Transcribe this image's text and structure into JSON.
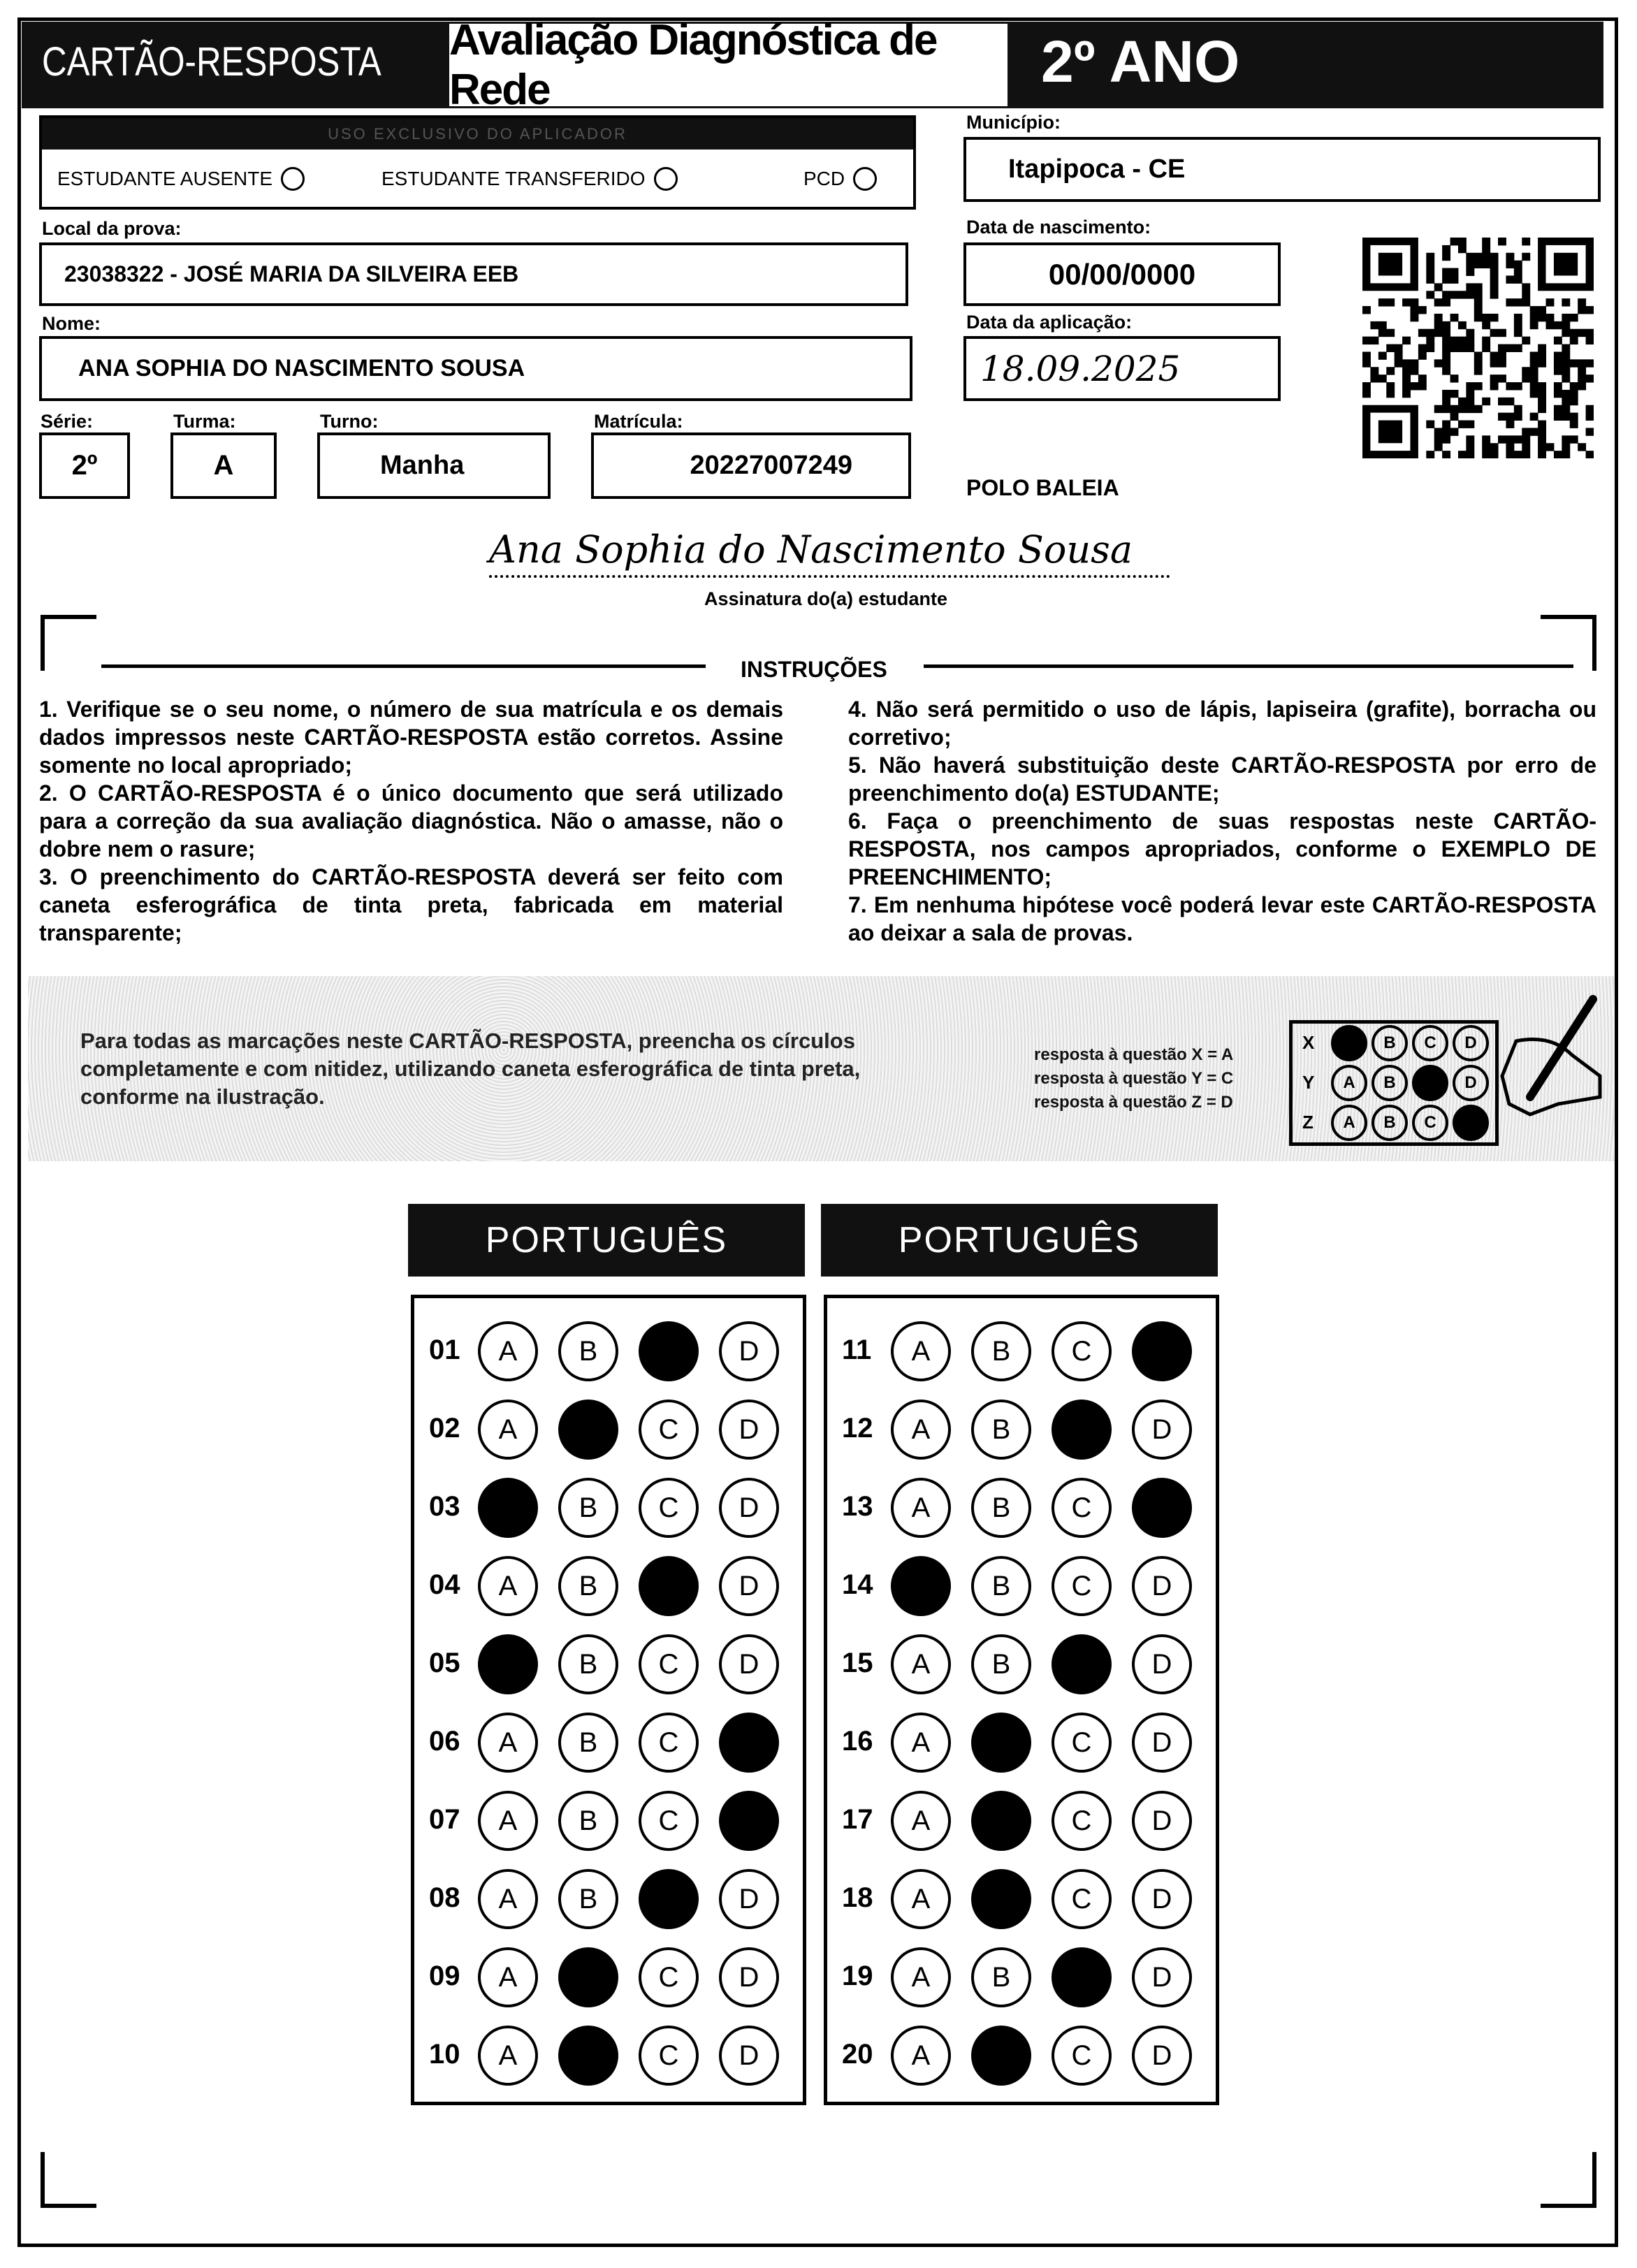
{
  "header": {
    "left_title": "CARTÃO-RESPOSTA",
    "exam_title": "Avaliação Diagnóstica de Rede",
    "grade": "2º ANO"
  },
  "applicator": {
    "strip": "USO EXCLUSIVO DO APLICADOR",
    "options": [
      "ESTUDANTE AUSENTE",
      "ESTUDANTE TRANSFERIDO",
      "PCD"
    ]
  },
  "fields": {
    "municipio_label": "Município:",
    "municipio": "Itapipoca - CE",
    "local_label": "Local da prova:",
    "local": "23038322 - JOSÉ MARIA DA SILVEIRA EEB",
    "nascimento_label": "Data de nascimento:",
    "nascimento": "00/00/0000",
    "nome_label": "Nome:",
    "nome": "ANA SOPHIA DO NASCIMENTO SOUSA",
    "aplicacao_label": "Data da aplicação:",
    "aplicacao": "18.09.2025",
    "serie_label": "Série:",
    "serie": "2º",
    "turma_label": "Turma:",
    "turma": "A",
    "turno_label": "Turno:",
    "turno": "Manha",
    "matricula_label": "Matrícula:",
    "matricula": "20227007249",
    "polo": "POLO BALEIA"
  },
  "signature": {
    "text": "Ana Sophia do Nascimento Sousa",
    "label": "Assinatura do(a) estudante"
  },
  "instructions": {
    "title": "INSTRUÇÕES",
    "left": "1. Verifique se o seu nome, o número de sua matrícula e os demais dados impressos neste CARTÃO-RESPOSTA estão corretos. Assine somente no local apropriado;\n2. O CARTÃO-RESPOSTA é o único documento que será utilizado para a correção da sua avaliação diagnóstica. Não o amasse, não o dobre nem o rasure;\n3. O preenchimento do CARTÃO-RESPOSTA deverá ser feito com caneta esferográfica de tinta preta, fabricada em material transparente;",
    "right": "4. Não será permitido o uso de lápis, lapiseira (grafite), borracha ou corretivo;\n5. Não haverá substituição deste CARTÃO-RESPOSTA por erro de preenchimento do(a) ESTUDANTE;\n6. Faça o preenchimento de suas respostas neste CARTÃO-RESPOSTA, nos campos apropriados, conforme o EXEMPLO DE PREENCHIMENTO;\n7. Em nenhuma hipótese você poderá levar este CARTÃO-RESPOSTA ao deixar a sala de provas."
  },
  "example": {
    "text": "Para todas as marcações neste CARTÃO-RESPOSTA, preencha os círculos completamente e com nitidez, utilizando caneta esferográfica de tinta preta, conforme na ilustração.",
    "lines": [
      "resposta à questão X = A",
      "resposta à questão Y = C",
      "resposta à questão Z = D"
    ],
    "rows": [
      {
        "q": "X",
        "filled": "A"
      },
      {
        "q": "Y",
        "filled": "C"
      },
      {
        "q": "Z",
        "filled": "D"
      }
    ]
  },
  "options": [
    "A",
    "B",
    "C",
    "D"
  ],
  "sections": [
    {
      "title": "PORTUGUÊS",
      "questions": [
        {
          "n": "01",
          "answer": "C"
        },
        {
          "n": "02",
          "answer": "B"
        },
        {
          "n": "03",
          "answer": "A"
        },
        {
          "n": "04",
          "answer": "C"
        },
        {
          "n": "05",
          "answer": "A"
        },
        {
          "n": "06",
          "answer": "D"
        },
        {
          "n": "07",
          "answer": "D"
        },
        {
          "n": "08",
          "answer": "C"
        },
        {
          "n": "09",
          "answer": "B"
        },
        {
          "n": "10",
          "answer": "B"
        }
      ]
    },
    {
      "title": "PORTUGUÊS",
      "questions": [
        {
          "n": "11",
          "answer": "D"
        },
        {
          "n": "12",
          "answer": "C"
        },
        {
          "n": "13",
          "answer": "D"
        },
        {
          "n": "14",
          "answer": "A"
        },
        {
          "n": "15",
          "answer": "C"
        },
        {
          "n": "16",
          "answer": "B"
        },
        {
          "n": "17",
          "answer": "B"
        },
        {
          "n": "18",
          "answer": "B"
        },
        {
          "n": "19",
          "answer": "C"
        },
        {
          "n": "20",
          "answer": "B"
        }
      ]
    }
  ]
}
